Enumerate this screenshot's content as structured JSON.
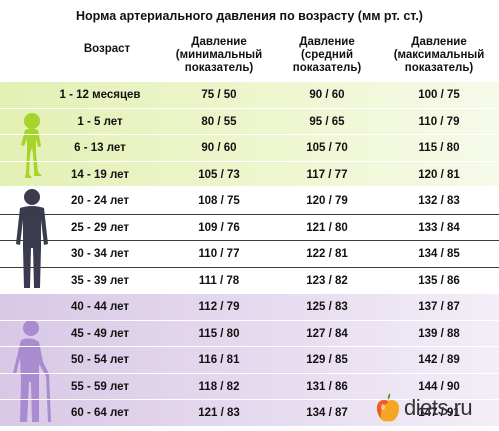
{
  "title": "Норма артериального давления по возрасту (мм рт. ст.)",
  "headers": {
    "age": [
      "Возраст"
    ],
    "min": [
      "Давление",
      "(минимальный",
      "показатель)"
    ],
    "mid": [
      "Давление",
      "(средний",
      "показатель)"
    ],
    "max": [
      "Давление",
      "(максимальный",
      "показатель)"
    ]
  },
  "rows": [
    {
      "age": "1 - 12 месяцев",
      "min": "75 / 50",
      "mid": "90 / 60",
      "max": "100 / 75"
    },
    {
      "age": "1 - 5 лет",
      "min": "80 / 55",
      "mid": "95 / 65",
      "max": "110 / 79"
    },
    {
      "age": "6 - 13 лет",
      "min": "90 / 60",
      "mid": "105 / 70",
      "max": "115 / 80"
    },
    {
      "age": "14 - 19 лет",
      "min": "105 / 73",
      "mid": "117 / 77",
      "max": "120 / 81"
    },
    {
      "age": "20 - 24 лет",
      "min": "108 / 75",
      "mid": "120 / 79",
      "max": "132 / 83"
    },
    {
      "age": "25 - 29 лет",
      "min": "109 / 76",
      "mid": "121 / 80",
      "max": "133 / 84"
    },
    {
      "age": "30 - 34 лет",
      "min": "110 / 77",
      "mid": "122 / 81",
      "max": "134 / 85"
    },
    {
      "age": "35 - 39 лет",
      "min": "111 / 78",
      "mid": "123 / 82",
      "max": "135 / 86"
    },
    {
      "age": "40 - 44 лет",
      "min": "112 / 79",
      "mid": "125 / 83",
      "max": "137 / 87"
    },
    {
      "age": "45 - 49 лет",
      "min": "115 / 80",
      "mid": "127 / 84",
      "max": "139 / 88"
    },
    {
      "age": "50 - 54 лет",
      "min": "116 / 81",
      "mid": "129 / 85",
      "max": "142 / 89"
    },
    {
      "age": "55 - 59 лет",
      "min": "118 / 82",
      "mid": "131 / 86",
      "max": "144 / 90"
    },
    {
      "age": "60 - 64 лет",
      "min": "121 / 83",
      "mid": "134 / 87",
      "max": "147 / 91"
    }
  ],
  "brand": {
    "name": "diets.ru"
  },
  "icons": {
    "child": "child-silhouette-icon",
    "adult": "adult-silhouette-icon",
    "elder": "elder-silhouette-icon",
    "apple": "apple-icon"
  },
  "colors": {
    "green_band": "#e3f0b4",
    "purple_band": "#d8c8e6",
    "child_figure": "#a6d42a",
    "adult_figure": "#3b3b50",
    "elder_figure": "#a98bd0"
  }
}
